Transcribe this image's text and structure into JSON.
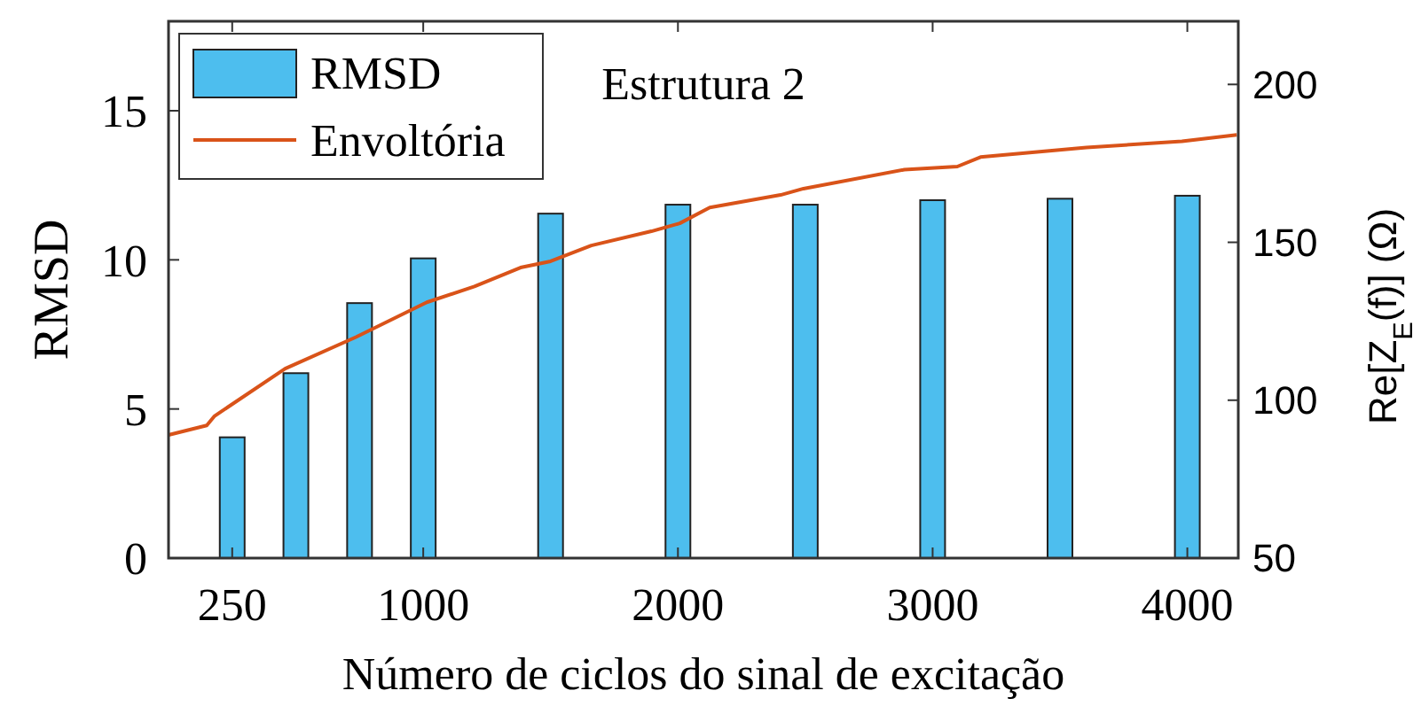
{
  "chart_data": {
    "type": "bar",
    "annotations": [
      "Estrutura 2"
    ],
    "xlabel": "Número de ciclos do sinal de excitação",
    "ylabel": "RMSD",
    "y2label": "Re[Z$_{E}$(f)] (Ω)",
    "x": [
      250,
      500,
      750,
      1000,
      1500,
      2000,
      2500,
      3000,
      3500,
      4000
    ],
    "series": [
      {
        "name": "RMSD",
        "color": "#4dbeee",
        "values": [
          4.05,
          6.2,
          8.55,
          10.05,
          11.55,
          11.85,
          11.85,
          12.0,
          12.05,
          12.15
        ]
      },
      {
        "name": "Envoltória",
        "type": "line",
        "axis": "y2",
        "color": "#d95319",
        "x": [
          0,
          150,
          181,
          458,
          736,
          1014,
          1201,
          1382,
          1500,
          1660,
          1896,
          2007,
          2125,
          2403,
          2493,
          2889,
          3097,
          3188,
          3604,
          3979,
          4194
        ],
        "values": [
          89,
          92,
          95,
          110,
          120,
          131,
          136,
          142,
          144,
          149,
          153.5,
          156,
          161,
          165,
          167,
          173,
          174,
          177,
          180,
          182,
          184
        ]
      }
    ],
    "xlim": [
      0,
      4200
    ],
    "xticks": [
      250,
      1000,
      2000,
      3000,
      4000
    ],
    "ylim": [
      0,
      18
    ],
    "yticks": [
      0,
      5,
      10,
      15
    ],
    "y2lim": [
      50,
      220
    ],
    "y2ticks": [
      50,
      100,
      150,
      200
    ],
    "legend": "top left",
    "grid": false
  }
}
